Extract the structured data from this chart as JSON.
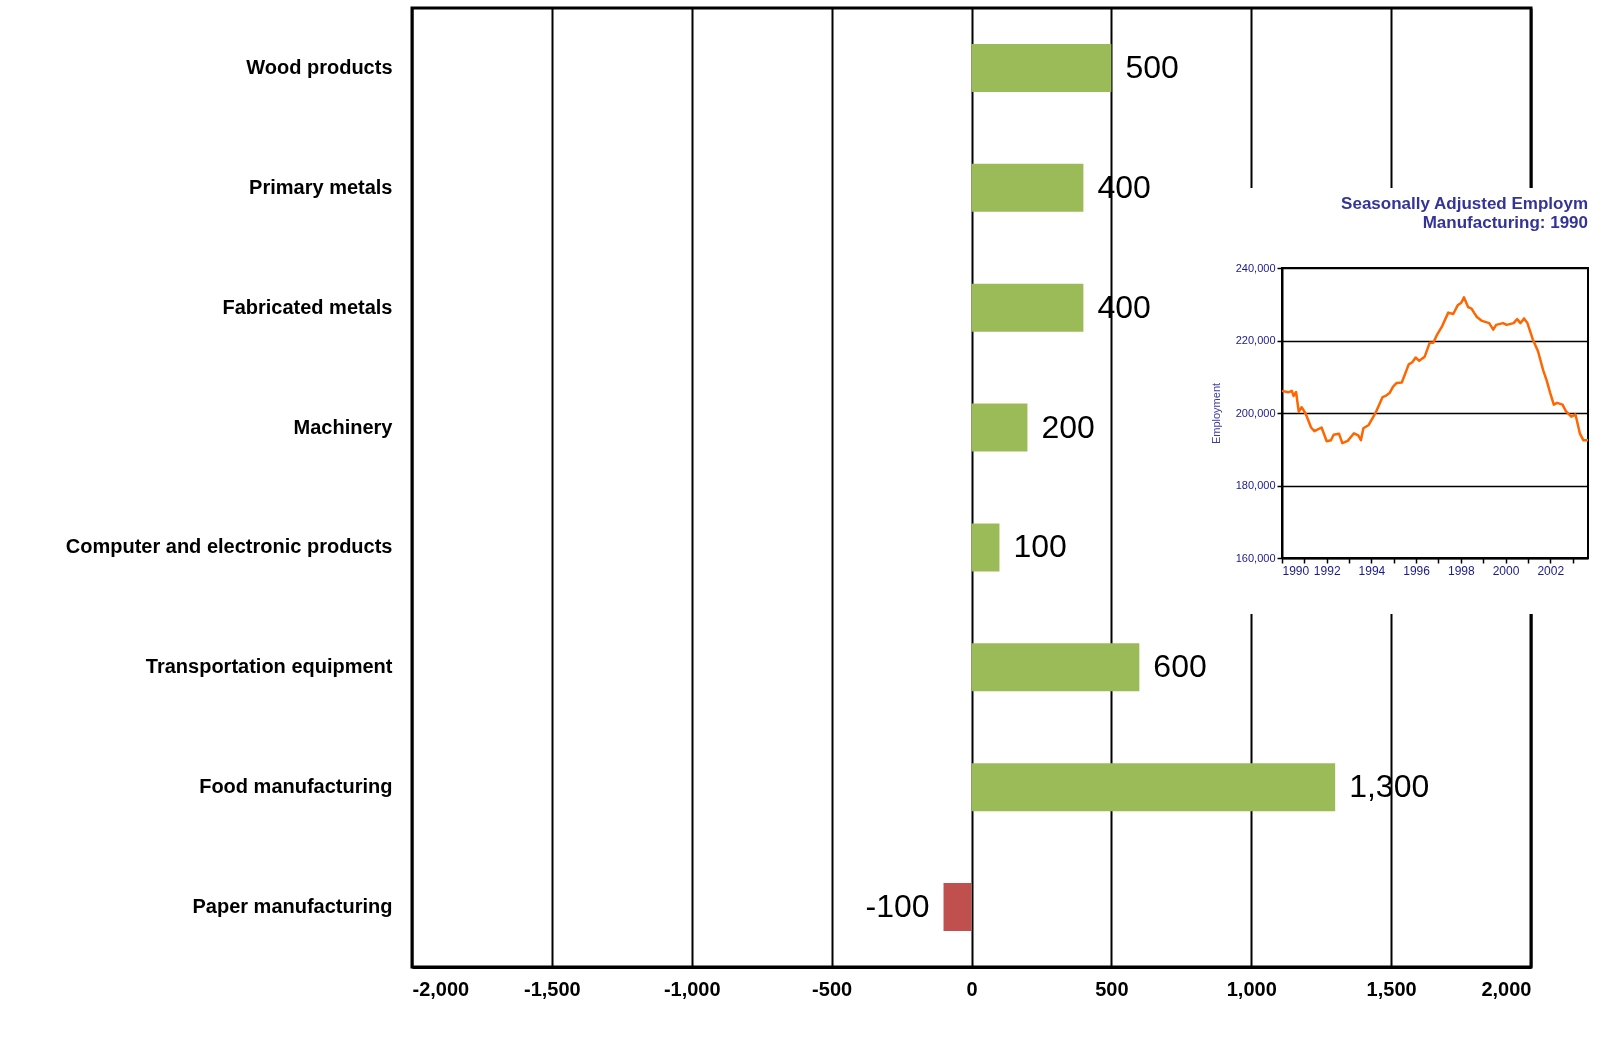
{
  "chart_data": [
    {
      "type": "bar",
      "orientation": "horizontal",
      "categories": [
        "Wood products",
        "Primary metals",
        "Fabricated metals",
        "Machinery",
        "Computer and electronic products",
        "Transportation equipment",
        "Food manufacturing",
        "Paper manufacturing"
      ],
      "values": [
        500,
        400,
        400,
        200,
        100,
        600,
        1300,
        -100
      ],
      "colors": [
        "#9bbb59",
        "#9bbb59",
        "#9bbb59",
        "#9bbb59",
        "#9bbb59",
        "#9bbb59",
        "#9bbb59",
        "#c0504d"
      ],
      "value_labels": [
        "500",
        "400",
        "400",
        "200",
        "100",
        "600",
        "1,300",
        "-100"
      ],
      "xlim": [
        -2000,
        2000
      ],
      "xticks": [
        {
          "value": -2000,
          "label": "-2,000"
        },
        {
          "value": -1500,
          "label": "-1,500"
        },
        {
          "value": -1000,
          "label": "-1,000"
        },
        -500,
        0,
        500,
        {
          "value": 1000,
          "label": "1,000"
        },
        {
          "value": 1500,
          "label": "1,500"
        },
        {
          "value": 2000,
          "label": "2,000"
        }
      ],
      "grid": "x"
    },
    {
      "type": "line",
      "title": "Seasonally Adjusted Employm",
      "subtitle": "Manufacturing:  1990",
      "ylabel": "Employment",
      "x": [
        1990.0,
        1990.28,
        1990.44,
        1990.52,
        1990.63,
        1990.75,
        1990.88,
        1991.06,
        1991.3,
        1991.45,
        1991.77,
        1992.0,
        1992.19,
        1992.31,
        1992.55,
        1992.7,
        1992.94,
        1993.22,
        1993.41,
        1993.53,
        1993.64,
        1993.88,
        1994.19,
        1994.5,
        1994.66,
        1994.81,
        1994.97,
        1995.13,
        1995.36,
        1995.67,
        1995.83,
        1995.98,
        1996.14,
        1996.38,
        1996.61,
        1996.77,
        1996.92,
        1997.16,
        1997.44,
        1997.66,
        1997.86,
        1998.02,
        1998.14,
        1998.33,
        1998.48,
        1998.59,
        1998.72,
        1998.95,
        1999.27,
        1999.45,
        1999.58,
        1999.89,
        2000.05,
        2000.36,
        2000.52,
        2000.67,
        2000.83,
        2000.98,
        2001.22,
        2001.45,
        2001.69,
        2001.84,
        2002.0,
        2002.16,
        2002.31,
        2002.55,
        2002.7,
        2002.94,
        2003.13,
        2003.33,
        2003.48,
        2003.69
      ],
      "series": [
        {
          "color": "#ff6600",
          "values": [
            206100,
            205700,
            206100,
            204700,
            205800,
            200300,
            201600,
            199800,
            196000,
            195000,
            196000,
            192200,
            192500,
            194000,
            194300,
            191700,
            192300,
            194400,
            193800,
            192500,
            195800,
            196700,
            200100,
            204400,
            204800,
            205500,
            207300,
            208300,
            208400,
            213400,
            214000,
            215300,
            214400,
            215500,
            219400,
            219400,
            221400,
            223900,
            227700,
            227300,
            229700,
            230400,
            231900,
            229200,
            228800,
            227700,
            226500,
            225400,
            224800,
            223000,
            224300,
            224800,
            224300,
            224800,
            225900,
            224800,
            226100,
            224800,
            220300,
            217100,
            211700,
            209000,
            205500,
            202300,
            202800,
            202300,
            200500,
            199000,
            199600,
            194300,
            192500,
            192500
          ]
        }
      ],
      "xlim": [
        1990,
        2003.69
      ],
      "xticks": [
        1990,
        {
          "value": 1991,
          "label": null
        },
        1992,
        {
          "value": 1993,
          "label": null
        },
        1994,
        {
          "value": 1995,
          "label": null
        },
        1996,
        {
          "value": 1997,
          "label": null
        },
        1998,
        {
          "value": 1999,
          "label": null
        },
        2000,
        {
          "value": 2001,
          "label": null
        },
        2002,
        {
          "value": 2003,
          "label": null
        }
      ],
      "ylim": [
        160000,
        240000
      ],
      "yticks": [
        {
          "value": 160000,
          "label": "160,000"
        },
        {
          "value": 180000,
          "label": "180,000"
        },
        {
          "value": 200000,
          "label": "200,000"
        },
        {
          "value": 220000,
          "label": "220,000"
        },
        {
          "value": 240000,
          "label": "240,000"
        }
      ],
      "grid": "y"
    }
  ]
}
